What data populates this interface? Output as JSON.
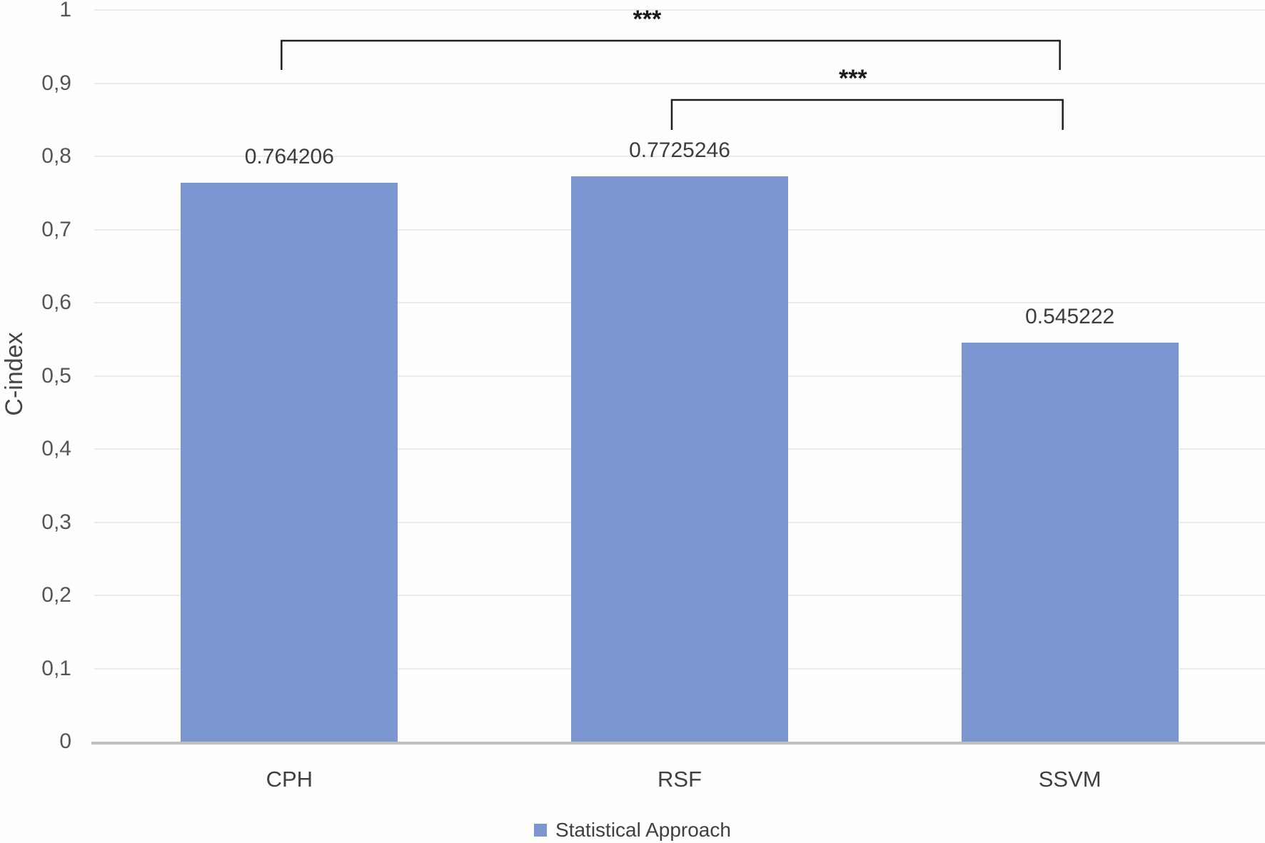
{
  "chart_data": {
    "type": "bar",
    "title": "",
    "categories": [
      "CPH",
      "RSF",
      "SSVM"
    ],
    "values": [
      0.764206,
      0.7725246,
      0.545222
    ],
    "value_labels": [
      "0.764206",
      "0.7725246",
      "0.545222"
    ],
    "series_name": "Statistical Approach",
    "xlabel": "",
    "ylabel": "C-index",
    "ylim": [
      0,
      1
    ],
    "ytick_step": 0.1,
    "yticks": [
      {
        "value": 0.0,
        "label": "0"
      },
      {
        "value": 0.1,
        "label": "0,1"
      },
      {
        "value": 0.2,
        "label": "0,2"
      },
      {
        "value": 0.3,
        "label": "0,3"
      },
      {
        "value": 0.4,
        "label": "0,4"
      },
      {
        "value": 0.5,
        "label": "0,5"
      },
      {
        "value": 0.6,
        "label": "0,6"
      },
      {
        "value": 0.7,
        "label": "0,7"
      },
      {
        "value": 0.8,
        "label": "0,8"
      },
      {
        "value": 0.9,
        "label": "0,9"
      },
      {
        "value": 1.0,
        "label": "1"
      }
    ],
    "grid": "horizontal",
    "legend": {
      "label": "Statistical Approach",
      "position": "bottom-center"
    },
    "significance_brackets": [
      {
        "from": "CPH",
        "to": "SSVM",
        "label": "***"
      },
      {
        "from": "RSF",
        "to": "SSVM",
        "label": "***"
      }
    ],
    "colors": {
      "bar": "#7b96d0",
      "grid": "#eaeaea",
      "axis_line": "#bfbfbf",
      "bracket": "#1f1f1f",
      "tick_text": "#555555",
      "label_text": "#3d3d3d"
    }
  }
}
